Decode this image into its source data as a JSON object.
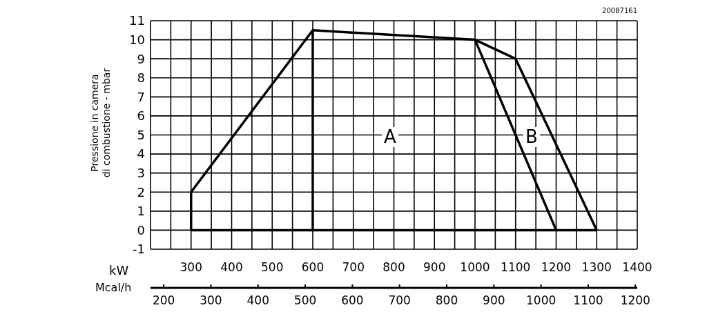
{
  "chart_data": {
    "type": "line",
    "xlabel": "kW",
    "x2label": "Mcal/h",
    "ylabel": "Pressione in camera\ndi combustione - mbar",
    "series": [
      {
        "x": [
          300,
          300,
          600,
          1000,
          1200
        ],
        "values": [
          0,
          2,
          10.5,
          10,
          0
        ],
        "color": "#000000"
      },
      {
        "x": [
          1000,
          1100,
          1300
        ],
        "values": [
          10,
          9,
          0
        ],
        "color": "#000000"
      },
      {
        "x": [
          300,
          1300
        ],
        "values": [
          0,
          0
        ],
        "color": "#000000"
      },
      {
        "x": [
          600,
          600
        ],
        "values": [
          0,
          10.5
        ],
        "color": "#000000"
      }
    ],
    "xlim": [
      200,
      1400
    ],
    "xticks": [
      {
        "value": 200,
        "label": null
      },
      {
        "value": 250,
        "label": null
      },
      300,
      {
        "value": 350,
        "label": null
      },
      400,
      {
        "value": 450,
        "label": null
      },
      500,
      {
        "value": 550,
        "label": null
      },
      600,
      {
        "value": 650,
        "label": null
      },
      700,
      {
        "value": 750,
        "label": null
      },
      800,
      {
        "value": 850,
        "label": null
      },
      900,
      {
        "value": 950,
        "label": null
      },
      1000,
      {
        "value": 1050,
        "label": null
      },
      1100,
      {
        "value": 1150,
        "label": null
      },
      1200,
      {
        "value": 1250,
        "label": null
      },
      1300,
      {
        "value": 1350,
        "label": null
      },
      1400
    ],
    "x2lim": [
      172,
      1204
    ],
    "x2ticks": [
      200,
      300,
      400,
      500,
      600,
      700,
      800,
      900,
      1000,
      1100,
      1200
    ],
    "ylim": [
      -1,
      11
    ],
    "yticks": [
      -1,
      0,
      1,
      2,
      3,
      4,
      5,
      6,
      7,
      8,
      9,
      10,
      11
    ],
    "grid": true,
    "marker": "none",
    "line_style": "solid",
    "annotations": [
      "A",
      "B",
      "20087161"
    ]
  }
}
